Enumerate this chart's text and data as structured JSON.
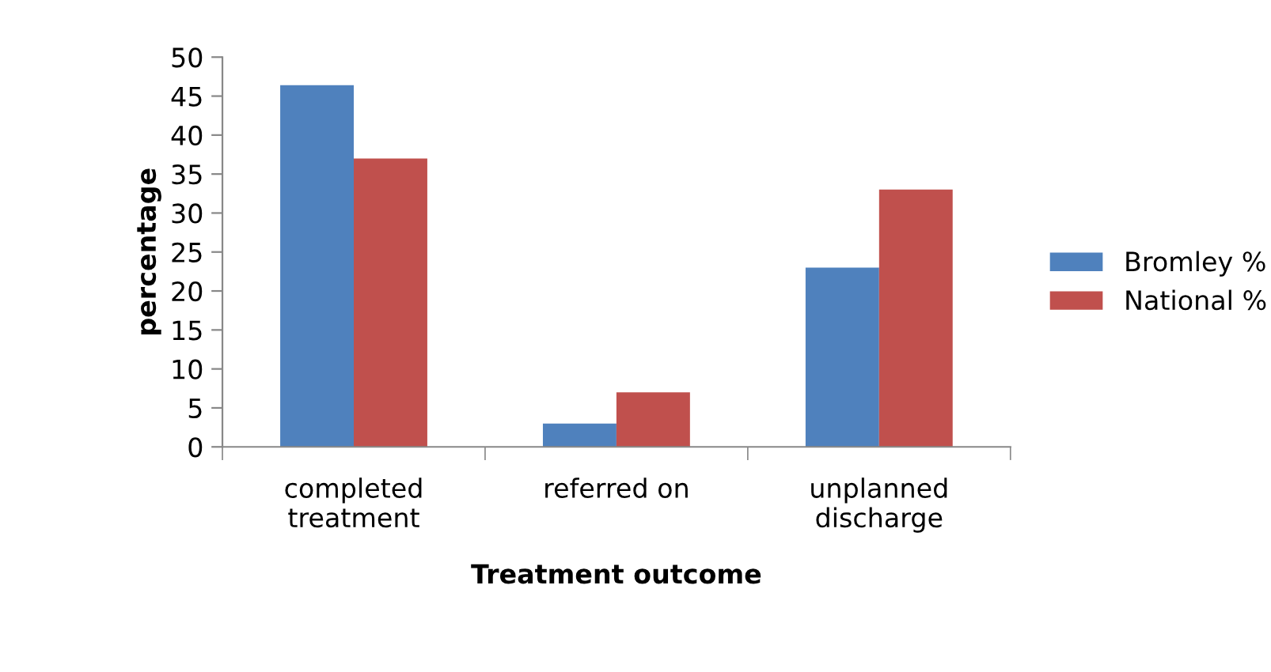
{
  "chart_data": {
    "type": "bar",
    "xlabel": "Treatment outcome",
    "ylabel": "percentage",
    "categories": [
      "completed\ntreatment",
      "referred on",
      "unplanned\ndischarge"
    ],
    "series": [
      {
        "name": "Bromley %",
        "color": "#4f81bd",
        "values": [
          46.4,
          3,
          23
        ]
      },
      {
        "name": "National %",
        "color": "#c0504d",
        "values": [
          37,
          7,
          33
        ]
      }
    ],
    "ylim": [
      0,
      50
    ],
    "yticks": [
      0,
      5,
      10,
      15,
      20,
      25,
      30,
      35,
      40,
      45,
      50
    ],
    "grid": false,
    "legend": "right"
  }
}
